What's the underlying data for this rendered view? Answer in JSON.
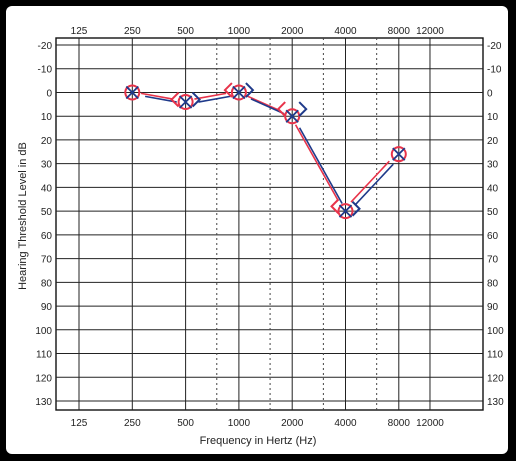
{
  "chart_data": {
    "type": "line",
    "title": "",
    "xlabel": "Frequency in Hertz (Hz)",
    "ylabel": "Hearing Threshold Level in dB",
    "x_scale": "log2",
    "y_inverted": true,
    "categories": [
      "125",
      "250",
      "500",
      "1000",
      "2000",
      "4000",
      "8000",
      "12000"
    ],
    "interoctave_lines": [
      "750",
      "1500",
      "3000",
      "6000"
    ],
    "ylim": [
      -20,
      130
    ],
    "y_ticks": [
      "-20",
      "-10",
      "0",
      "10",
      "20",
      "30",
      "40",
      "50",
      "60",
      "70",
      "80",
      "90",
      "100",
      "110",
      "120",
      "130"
    ],
    "grid": true,
    "legend": "none",
    "series": [
      {
        "marker": "O",
        "color": "#e8334a",
        "points": [
          {
            "x": 250,
            "y": 0
          },
          {
            "x": 500,
            "y": 4
          },
          {
            "x": 1000,
            "y": 0
          },
          {
            "x": 2000,
            "y": 10
          },
          {
            "x": 4000,
            "y": 50
          },
          {
            "x": 8000,
            "y": 26
          }
        ]
      },
      {
        "marker": "X",
        "color": "#1f3a8a",
        "points": [
          {
            "x": 250,
            "y": 0
          },
          {
            "x": 500,
            "y": 4
          },
          {
            "x": 1000,
            "y": 0
          },
          {
            "x": 2000,
            "y": 10
          },
          {
            "x": 4000,
            "y": 50
          },
          {
            "x": 8000,
            "y": 26
          }
        ]
      },
      {
        "marker": ">",
        "color": "#1f3a8a",
        "points": [
          {
            "x": 500,
            "y": 3
          },
          {
            "x": 1000,
            "y": -1
          },
          {
            "x": 2000,
            "y": 7
          },
          {
            "x": 4000,
            "y": 49
          }
        ]
      },
      {
        "marker": "<",
        "color": "#e8334a",
        "points": [
          {
            "x": 500,
            "y": 3
          },
          {
            "x": 1000,
            "y": -1
          },
          {
            "x": 2000,
            "y": 7
          },
          {
            "x": 4000,
            "y": 48
          }
        ]
      }
    ]
  }
}
